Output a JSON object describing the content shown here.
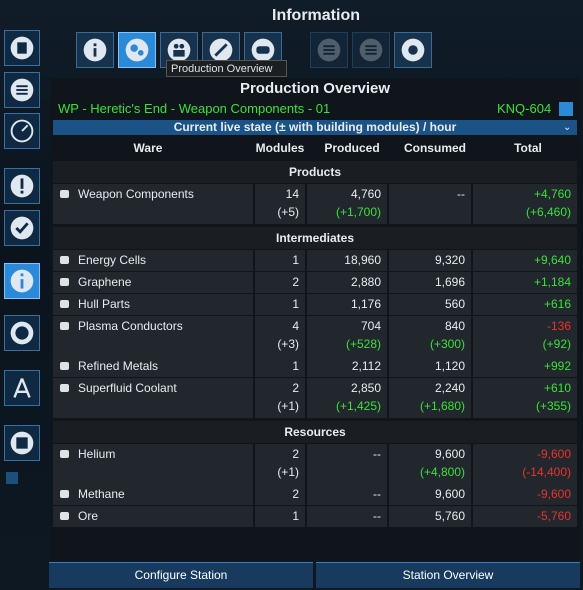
{
  "header": {
    "title": "Information",
    "tooltip": "Production Overview"
  },
  "panel": {
    "title": "Production Overview",
    "station": "WP - Heretic's End - Weapon Components - 01",
    "code": "KNQ-604",
    "mode": "Current live state (± with building modules) / hour"
  },
  "table": {
    "columns": [
      "Ware",
      "Modules",
      "Produced",
      "Consumed",
      "Total"
    ],
    "sections": [
      {
        "name": "Products",
        "rows": [
          {
            "ware": "Weapon Components",
            "modules": "14",
            "produced": "4,760",
            "consumed": "--",
            "total": "+4,760",
            "sub": {
              "modules": "(+5)",
              "produced": "(+1,700)",
              "total": "(+6,460)"
            }
          }
        ]
      },
      {
        "name": "Intermediates",
        "rows": [
          {
            "ware": "Energy Cells",
            "modules": "1",
            "produced": "18,960",
            "consumed": "9,320",
            "total": "+9,640"
          },
          {
            "ware": "Graphene",
            "modules": "2",
            "produced": "2,880",
            "consumed": "1,696",
            "total": "+1,184"
          },
          {
            "ware": "Hull Parts",
            "modules": "1",
            "produced": "1,176",
            "consumed": "560",
            "total": "+616"
          },
          {
            "ware": "Plasma Conductors",
            "modules": "4",
            "produced": "704",
            "consumed": "840",
            "total": "-136",
            "sub": {
              "modules": "(+3)",
              "produced": "(+528)",
              "consumed": "(+300)",
              "total": "(+92)"
            }
          },
          {
            "ware": "Refined Metals",
            "modules": "1",
            "produced": "2,112",
            "consumed": "1,120",
            "total": "+992"
          },
          {
            "ware": "Superfluid Coolant",
            "modules": "2",
            "produced": "2,850",
            "consumed": "2,240",
            "total": "+610",
            "sub": {
              "modules": "(+1)",
              "produced": "(+1,425)",
              "consumed": "(+1,680)",
              "total": "(+355)"
            }
          }
        ]
      },
      {
        "name": "Resources",
        "rows": [
          {
            "ware": "Helium",
            "modules": "2",
            "produced": "--",
            "consumed": "9,600",
            "total": "-9,600",
            "sub": {
              "modules": "(+1)",
              "consumed": "(+4,800)",
              "total": "(-14,400)"
            }
          },
          {
            "ware": "Methane",
            "modules": "2",
            "produced": "--",
            "consumed": "9,600",
            "total": "-9,600"
          },
          {
            "ware": "Ore",
            "modules": "1",
            "produced": "--",
            "consumed": "5,760",
            "total": "-5,760"
          }
        ]
      }
    ]
  },
  "buttons": [
    "Configure Station",
    "Station Overview"
  ]
}
